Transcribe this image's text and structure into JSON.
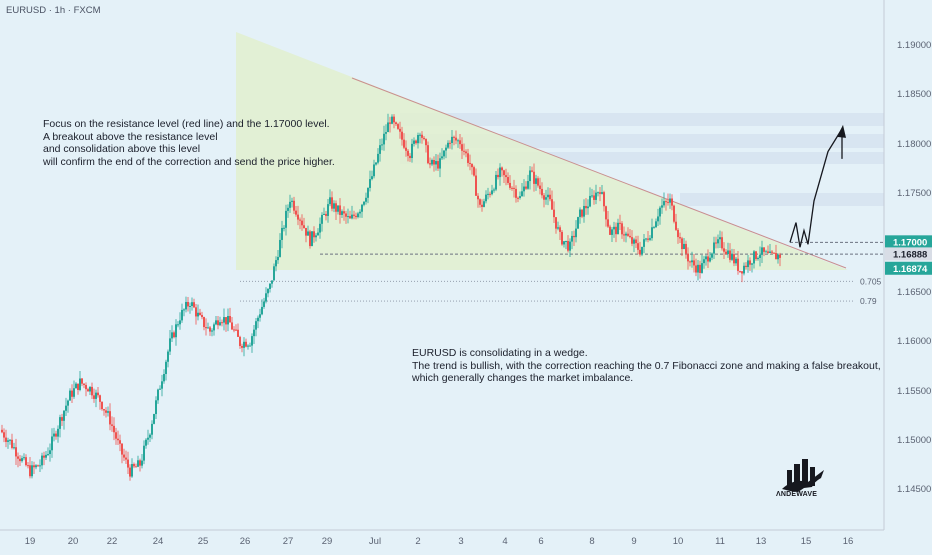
{
  "header": {
    "symbol": "EURUSD · 1h · FXCM"
  },
  "annotations": {
    "left_note": "Focus on the resistance level (red line) and the 1.17000 level.\nA breakout above the resistance level\nand consolidation above this level\nwill confirm the end of the correction and send the price higher.",
    "right_note": "EURUSD is consolidating in a wedge.\nThe trend is bullish, with the correction reaching the 0.7 Fibonacci zone and making a false breakout,\nwhich generally changes the market imbalance."
  },
  "logo": {
    "text": "ΛNDEWAVE",
    "icon": "buildings-bull-logo-icon"
  },
  "colors": {
    "background": "#e4f1f8",
    "bull": "#26a69a",
    "bear": "#ef5350",
    "wedge_fill": "#e2f0cf",
    "resistance": "#c98f8f",
    "tag_green": "#26a69a",
    "tag_grey": "#d8dde6"
  },
  "chart_data": {
    "type": "candlestick",
    "title": "EURUSD · 1h · FXCM",
    "x_ticks": [
      "19",
      "20",
      "22",
      "24",
      "25",
      "26",
      "27",
      "29",
      "Jul",
      "2",
      "3",
      "4",
      "6",
      "8",
      "9",
      "10",
      "11",
      "13",
      "15",
      "16"
    ],
    "y_ticks": [
      "1.19000",
      "1.18500",
      "1.18000",
      "1.17500",
      "1.17000",
      "1.16500",
      "1.16000",
      "1.15500",
      "1.15000",
      "1.14500"
    ],
    "ylim": [
      1.142,
      1.194
    ],
    "price_tags": [
      {
        "label": "1.17000",
        "value": 1.17,
        "style": "green"
      },
      {
        "label": "1.16888",
        "value": 1.16888,
        "style": "grey"
      },
      {
        "label": "1.16874",
        "value": 1.16874,
        "style": "green"
      }
    ],
    "fib_levels": [
      {
        "label": "0.705",
        "value": 1.16605
      },
      {
        "label": "0.79",
        "value": 1.16405
      }
    ],
    "key_level": 1.1688,
    "price_path_closes": [
      1.151,
      1.1498,
      1.1482,
      1.1468,
      1.1475,
      1.1492,
      1.152,
      1.1545,
      1.1558,
      1.1552,
      1.154,
      1.152,
      1.149,
      1.1468,
      1.1475,
      1.151,
      1.1555,
      1.1598,
      1.1625,
      1.164,
      1.1622,
      1.161,
      1.1625,
      1.1618,
      1.1598,
      1.16,
      1.163,
      1.1655,
      1.17,
      1.1745,
      1.1725,
      1.1702,
      1.1718,
      1.174,
      1.173,
      1.1722,
      1.1735,
      1.176,
      1.1795,
      1.1825,
      1.1808,
      1.179,
      1.1815,
      1.1778,
      1.178,
      1.1805,
      1.1802,
      1.178,
      1.1735,
      1.1752,
      1.177,
      1.176,
      1.1745,
      1.177,
      1.1755,
      1.174,
      1.1705,
      1.1695,
      1.1728,
      1.1742,
      1.1755,
      1.171,
      1.1715,
      1.1702,
      1.1692,
      1.171,
      1.1735,
      1.1742,
      1.1702,
      1.168,
      1.1672,
      1.169,
      1.17,
      1.1688,
      1.1672,
      1.1682,
      1.169,
      1.1685,
      1.1687
    ],
    "projection_path": [
      1.17,
      1.172,
      1.1695,
      1.1712,
      1.1698,
      1.1742,
      1.1792,
      1.1815
    ]
  }
}
